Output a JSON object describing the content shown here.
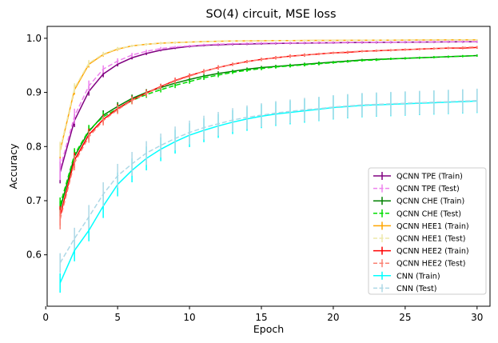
{
  "chart_data": {
    "type": "line",
    "title": "SO(4) circuit, MSE loss",
    "xlabel": "Epoch",
    "ylabel": "Accuracy",
    "xlim": [
      0.1,
      30.9
    ],
    "ylim": [
      0.505,
      1.022
    ],
    "xticks": [
      0,
      5,
      10,
      15,
      20,
      25,
      30
    ],
    "xtick_labels": [
      "0",
      "5",
      "10",
      "15",
      "20",
      "25",
      "30"
    ],
    "yticks": [
      0.6,
      0.7,
      0.8,
      0.9,
      1.0
    ],
    "ytick_labels": [
      "0.6",
      "0.7",
      "0.8",
      "0.9",
      "1.0"
    ],
    "legend_position": "lower-right",
    "x": [
      1,
      2,
      3,
      4,
      5,
      6,
      7,
      8,
      9,
      10,
      11,
      12,
      13,
      14,
      15,
      16,
      17,
      18,
      19,
      20,
      21,
      22,
      23,
      24,
      25,
      26,
      27,
      28,
      29,
      30
    ],
    "series": [
      {
        "name": "QCNN TPE (Train)",
        "color": "#800080",
        "style": "solid",
        "values": [
          0.752,
          0.848,
          0.902,
          0.934,
          0.952,
          0.964,
          0.972,
          0.978,
          0.982,
          0.985,
          0.987,
          0.988,
          0.989,
          0.9895,
          0.99,
          0.9905,
          0.991,
          0.9912,
          0.9915,
          0.9918,
          0.992,
          0.9922,
          0.9924,
          0.9926,
          0.9928,
          0.993,
          0.9932,
          0.9934,
          0.9935,
          0.9936
        ],
        "errors": [
          0.02,
          0.012,
          0.008,
          0.006,
          0.004,
          0.003,
          0.003,
          0.002,
          0.002,
          0.002,
          0.002,
          0.002,
          0.002,
          0.002,
          0.002,
          0.002,
          0.002,
          0.002,
          0.002,
          0.002,
          0.002,
          0.002,
          0.002,
          0.002,
          0.002,
          0.002,
          0.002,
          0.002,
          0.002,
          0.002
        ]
      },
      {
        "name": "QCNN TPE (Test)",
        "color": "#ee82ee",
        "style": "dashed",
        "values": [
          0.76,
          0.856,
          0.912,
          0.943,
          0.958,
          0.969,
          0.976,
          0.981,
          0.984,
          0.986,
          0.988,
          0.989,
          0.99,
          0.9905,
          0.991,
          0.9912,
          0.9915,
          0.9918,
          0.992,
          0.9922,
          0.9925,
          0.9927,
          0.9929,
          0.993,
          0.9932,
          0.9934,
          0.9936,
          0.9937,
          0.9938,
          0.994
        ],
        "errors": [
          0.022,
          0.014,
          0.01,
          0.007,
          0.005,
          0.004,
          0.003,
          0.003,
          0.002,
          0.002,
          0.002,
          0.002,
          0.002,
          0.002,
          0.002,
          0.002,
          0.002,
          0.002,
          0.002,
          0.002,
          0.002,
          0.002,
          0.002,
          0.002,
          0.002,
          0.002,
          0.002,
          0.002,
          0.002,
          0.002
        ]
      },
      {
        "name": "QCNN CHE (Train)",
        "color": "#008000",
        "style": "solid",
        "values": [
          0.685,
          0.782,
          0.828,
          0.858,
          0.874,
          0.889,
          0.9,
          0.909,
          0.917,
          0.924,
          0.93,
          0.935,
          0.939,
          0.943,
          0.946,
          0.948,
          0.95,
          0.952,
          0.954,
          0.956,
          0.958,
          0.96,
          0.961,
          0.962,
          0.963,
          0.964,
          0.965,
          0.966,
          0.967,
          0.968
        ],
        "errors": [
          0.014,
          0.012,
          0.01,
          0.009,
          0.008,
          0.007,
          0.006,
          0.005,
          0.005,
          0.004,
          0.004,
          0.004,
          0.003,
          0.003,
          0.003,
          0.003,
          0.003,
          0.003,
          0.003,
          0.002,
          0.002,
          0.002,
          0.002,
          0.002,
          0.002,
          0.002,
          0.002,
          0.002,
          0.002,
          0.002
        ]
      },
      {
        "name": "QCNN CHE (Test)",
        "color": "#00dd00",
        "style": "dashed",
        "values": [
          0.692,
          0.785,
          0.83,
          0.855,
          0.87,
          0.885,
          0.896,
          0.905,
          0.913,
          0.92,
          0.927,
          0.932,
          0.937,
          0.941,
          0.944,
          0.947,
          0.949,
          0.951,
          0.953,
          0.955,
          0.957,
          0.959,
          0.96,
          0.962,
          0.963,
          0.964,
          0.965,
          0.966,
          0.967,
          0.968
        ],
        "errors": [
          0.014,
          0.012,
          0.01,
          0.009,
          0.008,
          0.007,
          0.006,
          0.005,
          0.005,
          0.004,
          0.004,
          0.004,
          0.003,
          0.003,
          0.003,
          0.003,
          0.003,
          0.003,
          0.003,
          0.002,
          0.002,
          0.002,
          0.002,
          0.002,
          0.002,
          0.002,
          0.002,
          0.002,
          0.002,
          0.002
        ]
      },
      {
        "name": "QCNN HEE1 (Train)",
        "color": "#ffa500",
        "style": "solid",
        "values": [
          0.792,
          0.905,
          0.952,
          0.97,
          0.98,
          0.986,
          0.989,
          0.991,
          0.992,
          0.993,
          0.994,
          0.9945,
          0.995,
          0.9953,
          0.9955,
          0.9957,
          0.9958,
          0.996,
          0.9961,
          0.9962,
          0.9963,
          0.9964,
          0.9965,
          0.9966,
          0.9967,
          0.9968,
          0.9969,
          0.997,
          0.997,
          0.997
        ],
        "errors": [
          0.014,
          0.009,
          0.006,
          0.004,
          0.003,
          0.002,
          0.002,
          0.002,
          0.002,
          0.001,
          0.001,
          0.001,
          0.001,
          0.001,
          0.001,
          0.001,
          0.001,
          0.001,
          0.001,
          0.001,
          0.001,
          0.001,
          0.001,
          0.001,
          0.001,
          0.001,
          0.001,
          0.001,
          0.001,
          0.001
        ]
      },
      {
        "name": "QCNN HEE1 (Test)",
        "color": "#eee8aa",
        "style": "dashed",
        "values": [
          0.795,
          0.908,
          0.954,
          0.971,
          0.981,
          0.986,
          0.989,
          0.991,
          0.992,
          0.993,
          0.994,
          0.9945,
          0.995,
          0.9953,
          0.9955,
          0.9957,
          0.9958,
          0.996,
          0.9961,
          0.9962,
          0.9963,
          0.9964,
          0.9965,
          0.9966,
          0.9967,
          0.9968,
          0.9969,
          0.997,
          0.997,
          0.997
        ],
        "errors": [
          0.014,
          0.009,
          0.006,
          0.004,
          0.003,
          0.002,
          0.002,
          0.002,
          0.002,
          0.001,
          0.001,
          0.001,
          0.001,
          0.001,
          0.001,
          0.001,
          0.001,
          0.001,
          0.001,
          0.001,
          0.001,
          0.001,
          0.001,
          0.001,
          0.001,
          0.001,
          0.001,
          0.001,
          0.001,
          0.001
        ]
      },
      {
        "name": "QCNN HEE2 (Train)",
        "color": "#ff0000",
        "style": "solid",
        "values": [
          0.672,
          0.775,
          0.822,
          0.85,
          0.87,
          0.886,
          0.899,
          0.911,
          0.922,
          0.931,
          0.939,
          0.946,
          0.952,
          0.957,
          0.961,
          0.964,
          0.967,
          0.969,
          0.971,
          0.973,
          0.974,
          0.976,
          0.977,
          0.978,
          0.979,
          0.98,
          0.981,
          0.982,
          0.982,
          0.983
        ],
        "errors": [
          0.018,
          0.014,
          0.011,
          0.009,
          0.008,
          0.007,
          0.006,
          0.005,
          0.005,
          0.004,
          0.004,
          0.004,
          0.003,
          0.003,
          0.003,
          0.003,
          0.003,
          0.003,
          0.002,
          0.002,
          0.002,
          0.002,
          0.002,
          0.002,
          0.002,
          0.002,
          0.002,
          0.002,
          0.002,
          0.002
        ]
      },
      {
        "name": "QCNN HEE2 (Test)",
        "color": "#fa8072",
        "style": "dashed",
        "values": [
          0.665,
          0.77,
          0.818,
          0.848,
          0.868,
          0.885,
          0.898,
          0.91,
          0.921,
          0.93,
          0.939,
          0.946,
          0.952,
          0.957,
          0.961,
          0.964,
          0.967,
          0.969,
          0.971,
          0.973,
          0.975,
          0.976,
          0.977,
          0.978,
          0.979,
          0.98,
          0.981,
          0.982,
          0.983,
          0.984
        ],
        "errors": [
          0.018,
          0.014,
          0.011,
          0.009,
          0.008,
          0.007,
          0.006,
          0.005,
          0.005,
          0.004,
          0.004,
          0.004,
          0.003,
          0.003,
          0.003,
          0.003,
          0.003,
          0.003,
          0.002,
          0.002,
          0.002,
          0.002,
          0.002,
          0.002,
          0.002,
          0.002,
          0.002,
          0.002,
          0.002,
          0.002
        ]
      },
      {
        "name": "CNN (Train)",
        "color": "#00ffff",
        "style": "solid",
        "values": [
          0.548,
          0.608,
          0.645,
          0.69,
          0.73,
          0.756,
          0.778,
          0.795,
          0.809,
          0.821,
          0.83,
          0.838,
          0.845,
          0.851,
          0.856,
          0.86,
          0.863,
          0.866,
          0.869,
          0.872,
          0.874,
          0.876,
          0.877,
          0.878,
          0.879,
          0.88,
          0.881,
          0.882,
          0.883,
          0.884
        ],
        "errors": [
          0.018,
          0.02,
          0.02,
          0.022,
          0.022,
          0.022,
          0.022,
          0.022,
          0.022,
          0.022,
          0.022,
          0.022,
          0.022,
          0.022,
          0.022,
          0.022,
          0.022,
          0.022,
          0.022,
          0.022,
          0.022,
          0.022,
          0.022,
          0.022,
          0.022,
          0.022,
          0.022,
          0.022,
          0.022,
          0.022
        ]
      },
      {
        "name": "CNN (Test)",
        "color": "#add8e6",
        "style": "dashed",
        "values": [
          0.585,
          0.63,
          0.67,
          0.712,
          0.746,
          0.768,
          0.788,
          0.802,
          0.815,
          0.826,
          0.835,
          0.842,
          0.849,
          0.854,
          0.858,
          0.862,
          0.865,
          0.868,
          0.87,
          0.873,
          0.875,
          0.877,
          0.878,
          0.879,
          0.88,
          0.881,
          0.882,
          0.883,
          0.884,
          0.885
        ],
        "errors": [
          0.018,
          0.02,
          0.022,
          0.022,
          0.022,
          0.022,
          0.022,
          0.022,
          0.022,
          0.022,
          0.022,
          0.022,
          0.022,
          0.022,
          0.022,
          0.022,
          0.022,
          0.022,
          0.022,
          0.022,
          0.022,
          0.022,
          0.022,
          0.022,
          0.022,
          0.022,
          0.022,
          0.022,
          0.022,
          0.022
        ]
      }
    ]
  }
}
